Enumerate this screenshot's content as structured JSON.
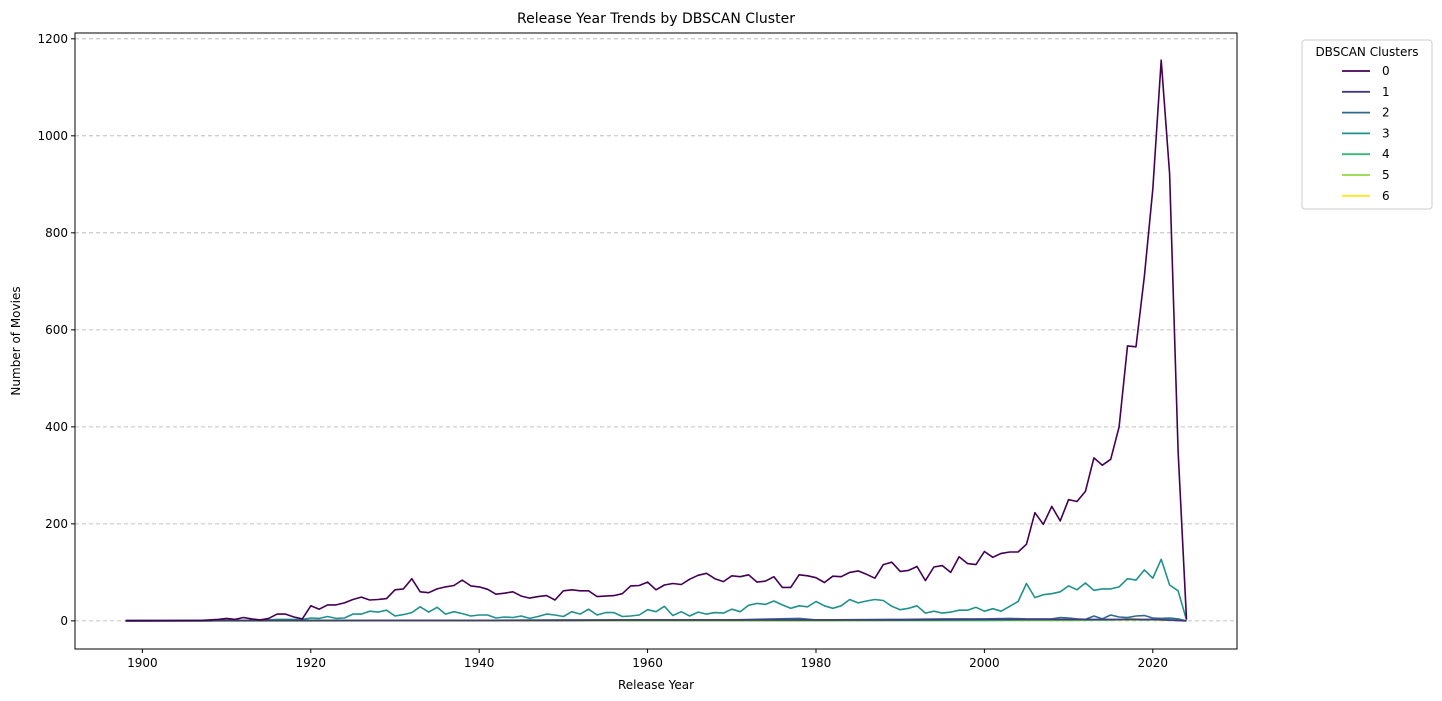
{
  "chart_data": {
    "type": "line",
    "title": "Release Year Trends by DBSCAN Cluster",
    "xlabel": "Release Year",
    "ylabel": "Number of Movies",
    "xlim": [
      1892,
      2030
    ],
    "ylim": [
      -58,
      1212
    ],
    "xticks": [
      1900,
      1920,
      1940,
      1960,
      1980,
      2000,
      2020
    ],
    "yticks": [
      0,
      200,
      400,
      600,
      800,
      1000,
      1200
    ],
    "grid": "y-dashed",
    "legend": {
      "title": "DBSCAN Clusters",
      "placement": "outside-top-right"
    },
    "series": [
      {
        "name": "0",
        "color": "#440154",
        "x": [
          1898,
          1899,
          1900,
          1901,
          1902,
          1903,
          1904,
          1905,
          1906,
          1907,
          1908,
          1909,
          1910,
          1911,
          1912,
          1913,
          1914,
          1915,
          1916,
          1917,
          1918,
          1919,
          1920,
          1921,
          1922,
          1923,
          1924,
          1925,
          1926,
          1927,
          1928,
          1929,
          1930,
          1931,
          1932,
          1933,
          1934,
          1935,
          1936,
          1937,
          1938,
          1939,
          1940,
          1941,
          1942,
          1943,
          1944,
          1945,
          1946,
          1947,
          1948,
          1949,
          1950,
          1951,
          1952,
          1953,
          1954,
          1955,
          1956,
          1957,
          1958,
          1959,
          1960,
          1961,
          1962,
          1963,
          1964,
          1965,
          1966,
          1967,
          1968,
          1969,
          1970,
          1971,
          1972,
          1973,
          1974,
          1975,
          1976,
          1977,
          1978,
          1979,
          1980,
          1981,
          1982,
          1983,
          1984,
          1985,
          1986,
          1987,
          1988,
          1989,
          1990,
          1991,
          1992,
          1993,
          1994,
          1995,
          1996,
          1997,
          1998,
          1999,
          2000,
          2001,
          2002,
          2003,
          2004,
          2005,
          2006,
          2007,
          2008,
          2009,
          2010,
          2011,
          2012,
          2013,
          2014,
          2015,
          2016,
          2017,
          2018,
          2019,
          2020,
          2021,
          2022,
          2023,
          2024
        ],
        "y": [
          1,
          1,
          1,
          1,
          1,
          1,
          1,
          1,
          1,
          1,
          2,
          3,
          5,
          3,
          7,
          4,
          2,
          5,
          14,
          14,
          8,
          4,
          31,
          24,
          33,
          33,
          37,
          44,
          49,
          43,
          44,
          46,
          64,
          66,
          87,
          60,
          58,
          66,
          70,
          73,
          84,
          72,
          70,
          65,
          55,
          57,
          60,
          51,
          47,
          50,
          52,
          43,
          62,
          64,
          62,
          62,
          50,
          51,
          52,
          56,
          72,
          73,
          80,
          64,
          74,
          77,
          75,
          86,
          94,
          98,
          87,
          81,
          93,
          91,
          95,
          80,
          82,
          91,
          69,
          69,
          95,
          93,
          89,
          79,
          92,
          91,
          100,
          103,
          96,
          88,
          116,
          121,
          102,
          104,
          112,
          83,
          111,
          114,
          100,
          132,
          118,
          116,
          143,
          131,
          139,
          142,
          142,
          158,
          223,
          199,
          236,
          206,
          250,
          246,
          267,
          336,
          321,
          333,
          400,
          567,
          565,
          711,
          890,
          1156,
          922,
          350,
          3
        ]
      },
      {
        "name": "1",
        "color": "#443983",
        "x": [
          1898,
          1910,
          1920,
          1930,
          1940,
          1950,
          1960,
          1970,
          1980,
          1990,
          2000,
          2005,
          2010,
          2015,
          2020,
          2024
        ],
        "y": [
          0,
          1,
          1,
          1,
          1,
          1,
          2,
          2,
          2,
          2,
          3,
          3,
          3,
          3,
          3,
          0
        ]
      },
      {
        "name": "2",
        "color": "#31688e",
        "x": [
          1898,
          1920,
          1940,
          1950,
          1960,
          1970,
          1978,
          1980,
          1990,
          1995,
          2000,
          2003,
          2005,
          2008,
          2009,
          2010,
          2011,
          2012,
          2013,
          2014,
          2015,
          2016,
          2017,
          2018,
          2019,
          2020,
          2021,
          2022,
          2023,
          2024
        ],
        "y": [
          0,
          1,
          1,
          2,
          2,
          2,
          5,
          2,
          3,
          4,
          4,
          5,
          4,
          4,
          7,
          6,
          4,
          3,
          10,
          4,
          12,
          8,
          7,
          10,
          11,
          6,
          5,
          6,
          4,
          0
        ]
      },
      {
        "name": "3",
        "color": "#21918c",
        "x": [
          1898,
          1899,
          1900,
          1901,
          1902,
          1903,
          1904,
          1905,
          1906,
          1907,
          1908,
          1909,
          1910,
          1911,
          1912,
          1913,
          1914,
          1915,
          1916,
          1917,
          1918,
          1919,
          1920,
          1921,
          1922,
          1923,
          1924,
          1925,
          1926,
          1927,
          1928,
          1929,
          1930,
          1931,
          1932,
          1933,
          1934,
          1935,
          1936,
          1937,
          1938,
          1939,
          1940,
          1941,
          1942,
          1943,
          1944,
          1945,
          1946,
          1947,
          1948,
          1949,
          1950,
          1951,
          1952,
          1953,
          1954,
          1955,
          1956,
          1957,
          1958,
          1959,
          1960,
          1961,
          1962,
          1963,
          1964,
          1965,
          1966,
          1967,
          1968,
          1969,
          1970,
          1971,
          1972,
          1973,
          1974,
          1975,
          1976,
          1977,
          1978,
          1979,
          1980,
          1981,
          1982,
          1983,
          1984,
          1985,
          1986,
          1987,
          1988,
          1989,
          1990,
          1991,
          1992,
          1993,
          1994,
          1995,
          1996,
          1997,
          1998,
          1999,
          2000,
          2001,
          2002,
          2003,
          2004,
          2005,
          2006,
          2007,
          2008,
          2009,
          2010,
          2011,
          2012,
          2013,
          2014,
          2015,
          2016,
          2017,
          2018,
          2019,
          2020,
          2021,
          2022,
          2023,
          2024
        ],
        "y": [
          0,
          0,
          0,
          0,
          0,
          0,
          0,
          0,
          0,
          0,
          0,
          1,
          1,
          1,
          1,
          1,
          1,
          2,
          3,
          3,
          3,
          3,
          6,
          5,
          9,
          5,
          6,
          14,
          14,
          20,
          18,
          22,
          10,
          13,
          17,
          29,
          18,
          28,
          14,
          19,
          15,
          10,
          12,
          12,
          6,
          8,
          7,
          10,
          5,
          9,
          14,
          12,
          9,
          19,
          14,
          24,
          12,
          17,
          17,
          9,
          10,
          12,
          23,
          19,
          30,
          11,
          19,
          10,
          18,
          14,
          17,
          16,
          24,
          19,
          32,
          36,
          34,
          41,
          33,
          26,
          31,
          29,
          40,
          31,
          26,
          31,
          44,
          37,
          41,
          44,
          42,
          30,
          23,
          26,
          31,
          16,
          20,
          16,
          18,
          22,
          22,
          28,
          20,
          25,
          20,
          30,
          40,
          77,
          48,
          54,
          56,
          60,
          72,
          64,
          78,
          63,
          66,
          66,
          70,
          87,
          84,
          105,
          88,
          127,
          74,
          62,
          2
        ]
      },
      {
        "name": "4",
        "color": "#35b779",
        "x": [
          1898,
          1920,
          1940,
          1960,
          1980,
          1990,
          2000,
          2005,
          2010,
          2015,
          2016,
          2017,
          2018,
          2019,
          2020,
          2021,
          2022,
          2023,
          2024
        ],
        "y": [
          0,
          1,
          1,
          1,
          1,
          1,
          1,
          2,
          2,
          2,
          3,
          4,
          3,
          2,
          3,
          4,
          4,
          3,
          0
        ]
      },
      {
        "name": "5",
        "color": "#90d743",
        "x": [
          1898,
          1920,
          1940,
          1960,
          1980,
          2000,
          2010,
          2015,
          2018,
          2020,
          2022,
          2024
        ],
        "y": [
          0,
          0,
          1,
          1,
          1,
          1,
          1,
          2,
          2,
          2,
          2,
          0
        ]
      },
      {
        "name": "6",
        "color": "#fde725",
        "x": [
          1898,
          1920,
          1940,
          1960,
          1980,
          2000,
          2010,
          2016,
          2017,
          2018,
          2019,
          2020,
          2021,
          2022,
          2023,
          2024
        ],
        "y": [
          0,
          0,
          0,
          0,
          0,
          1,
          1,
          2,
          6,
          4,
          2,
          3,
          1,
          2,
          1,
          0
        ]
      }
    ]
  }
}
